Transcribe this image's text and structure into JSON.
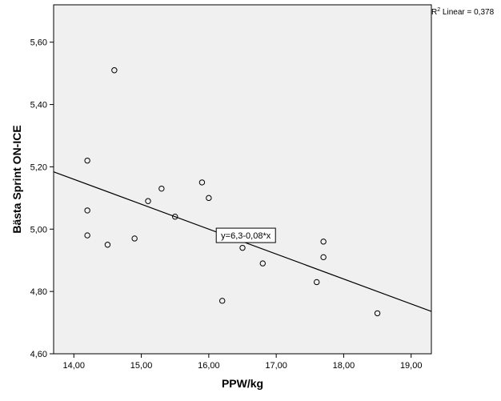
{
  "chart_data": {
    "type": "scatter",
    "xlabel": "PPW/kg",
    "ylabel": "Bästa Sprint ON-ICE",
    "xlim": [
      13.7,
      19.3
    ],
    "ylim": [
      4.6,
      5.72
    ],
    "x_ticks": [
      14,
      15,
      16,
      17,
      18,
      19
    ],
    "x_tick_labels": [
      "14,00",
      "15,00",
      "16,00",
      "17,00",
      "18,00",
      "19,00"
    ],
    "y_ticks": [
      4.6,
      4.8,
      5.0,
      5.2,
      5.4,
      5.6
    ],
    "y_tick_labels": [
      "4,60",
      "4,80",
      "5,00",
      "5,20",
      "5,40",
      "5,60"
    ],
    "grid": false,
    "series": [
      {
        "points": [
          {
            "x": 14.6,
            "y": 5.51
          },
          {
            "x": 14.2,
            "y": 5.22
          },
          {
            "x": 14.2,
            "y": 5.06
          },
          {
            "x": 14.2,
            "y": 4.98
          },
          {
            "x": 14.5,
            "y": 4.95
          },
          {
            "x": 14.9,
            "y": 4.97
          },
          {
            "x": 15.1,
            "y": 5.09
          },
          {
            "x": 15.3,
            "y": 5.13
          },
          {
            "x": 15.5,
            "y": 5.04
          },
          {
            "x": 15.9,
            "y": 5.15
          },
          {
            "x": 16.0,
            "y": 5.1
          },
          {
            "x": 16.2,
            "y": 4.77
          },
          {
            "x": 16.5,
            "y": 4.94
          },
          {
            "x": 16.8,
            "y": 4.89
          },
          {
            "x": 17.6,
            "y": 4.83
          },
          {
            "x": 17.7,
            "y": 4.96
          },
          {
            "x": 17.7,
            "y": 4.91
          },
          {
            "x": 18.5,
            "y": 4.73
          }
        ]
      }
    ],
    "fit_line": {
      "x1": 13.7,
      "y1": 5.184,
      "x2": 19.3,
      "y2": 4.736
    },
    "fit_equation": "y=6,3-0,08*x",
    "fit_equation_anchor": {
      "x": 16.55,
      "y": 4.98
    },
    "r2_prefix": "R",
    "r2_sup": "2",
    "r2_suffix": " Linear = 0,378",
    "colors": {
      "plot_bg": "#f0f0f0",
      "marker": "#000000",
      "line": "#000000"
    }
  }
}
